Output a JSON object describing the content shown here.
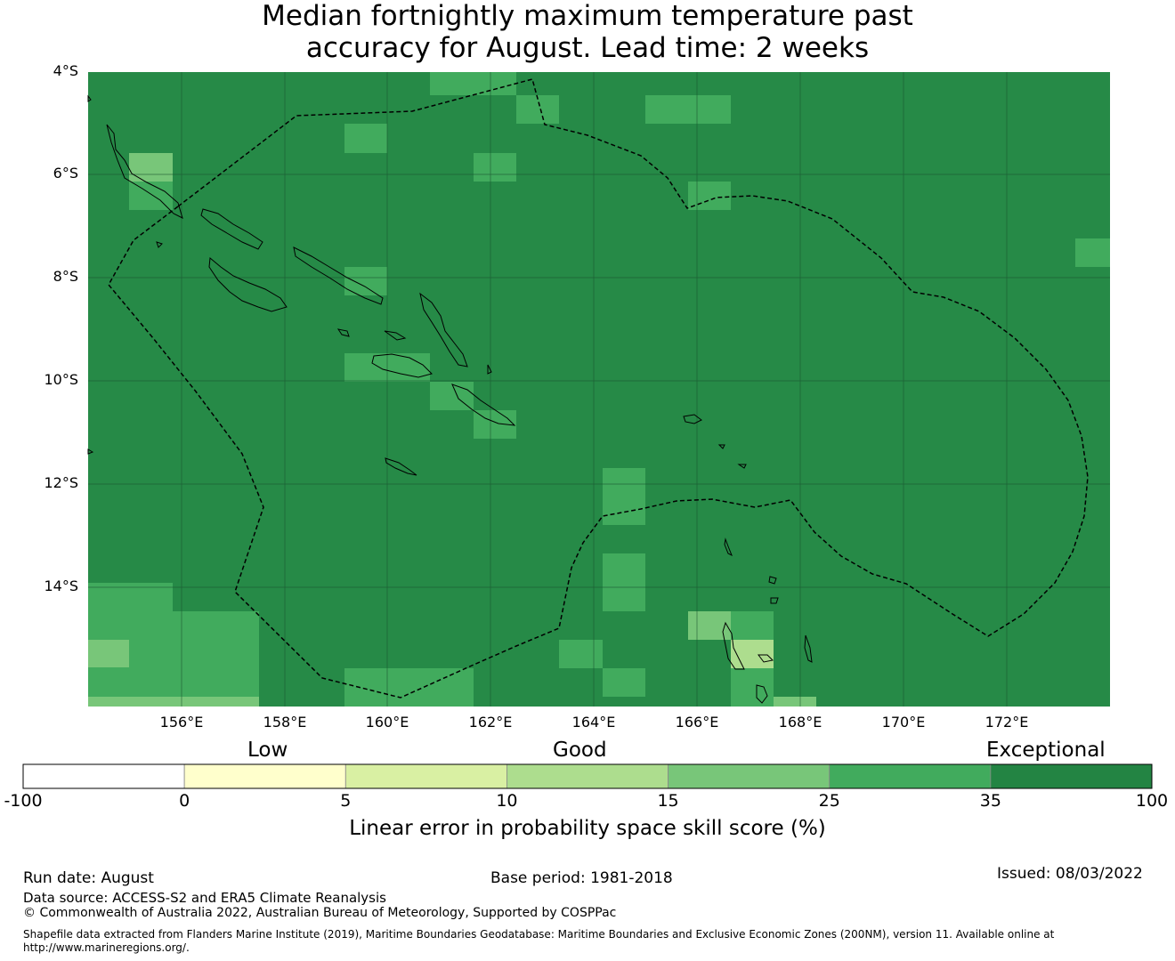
{
  "title": {
    "line1": "Median fortnightly maximum temperature past",
    "line2": "accuracy for August. Lead time: 2 weeks"
  },
  "map": {
    "lon_labels": [
      "156°E",
      "158°E",
      "160°E",
      "162°E",
      "164°E",
      "166°E",
      "168°E",
      "170°E",
      "172°E"
    ],
    "lat_labels": [
      "4°S",
      "6°S",
      "8°S",
      "10°S",
      "12°S",
      "14°S"
    ],
    "base_color": "#268a47",
    "category_colors": {
      "lt0": "#ffffff",
      "0_5": "#fefdcb",
      "5_10": "#d9efa1",
      "10_15": "#addd8e",
      "15_25": "#78c679",
      "25_35": "#41ab5d",
      "35_100": "#238443"
    }
  },
  "legend": {
    "category_low": "Low",
    "category_good": "Good",
    "category_exceptional": "Exceptional",
    "ticks": [
      "-100",
      "0",
      "5",
      "10",
      "15",
      "25",
      "35",
      "100"
    ],
    "colors": [
      "#ffffff",
      "#ffffcc",
      "#d9f0a3",
      "#addd8e",
      "#78c679",
      "#41ab5d",
      "#238443"
    ],
    "axis_label": "Linear error in probability space skill score (%)"
  },
  "footer": {
    "run_date": "Run date: August",
    "base_period": "Base period: 1981-2018",
    "issued": "Issued: 08/03/2022",
    "data_source": "Data source: ACCESS-S2 and ERA5 Climate Reanalysis",
    "copyright": "© Commonwealth of Australia 2022, Australian Bureau of Meteorology, Supported by COSPPac",
    "shapefile_line1": "Shapefile data extracted from Flanders Marine Institute (2019), Maritime Boundaries Geodatabase: Maritime Boundaries and Exclusive Economic Zones (200NM), version 11. Available online at",
    "shapefile_line2": "http://www.marineregions.org/."
  }
}
